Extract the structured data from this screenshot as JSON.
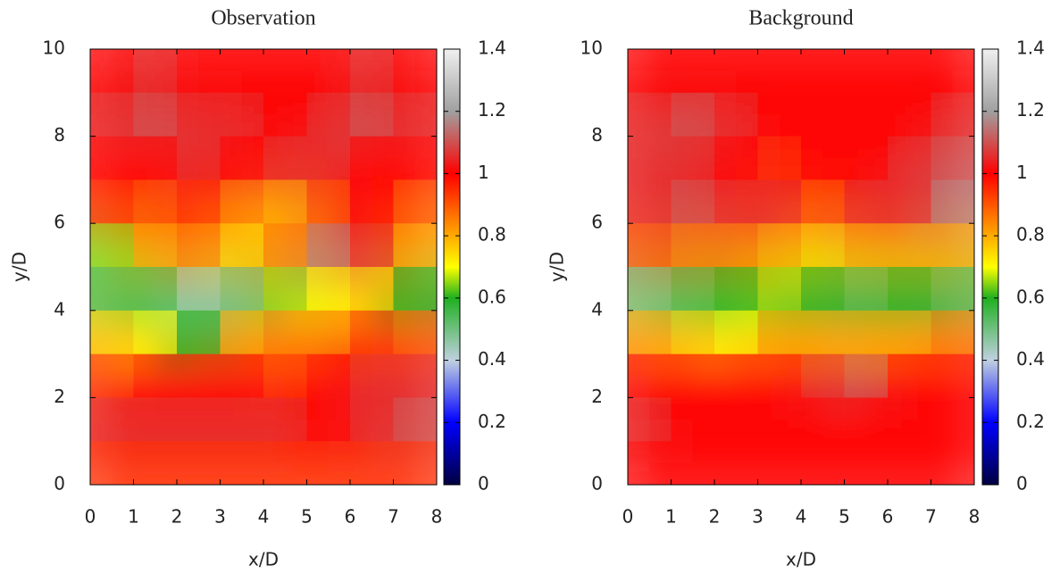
{
  "chart_data": [
    {
      "type": "heatmap",
      "title": "Observation",
      "x_label": "x/D",
      "y_label": "y/D",
      "x": [
        0.5,
        1.5,
        2.5,
        3.5,
        4.5,
        5.5,
        6.5,
        7.5
      ],
      "y": [
        0.5,
        1.5,
        2.5,
        3.5,
        4.5,
        5.5,
        6.5,
        7.5,
        8.5,
        9.5
      ],
      "z": [
        [
          0.95,
          0.95,
          0.95,
          0.95,
          0.95,
          0.95,
          0.95,
          0.95
        ],
        [
          1.05,
          1.05,
          1.05,
          1.05,
          1.05,
          1.0,
          1.05,
          1.1
        ],
        [
          0.95,
          1.0,
          1.0,
          1.0,
          0.95,
          1.0,
          1.05,
          1.05
        ],
        [
          0.75,
          0.7,
          0.6,
          0.8,
          0.85,
          0.85,
          0.95,
          0.9
        ],
        [
          0.55,
          0.55,
          0.45,
          0.5,
          0.65,
          0.7,
          0.75,
          0.6
        ],
        [
          0.65,
          0.8,
          0.85,
          0.75,
          0.85,
          1.15,
          1.05,
          0.8
        ],
        [
          0.95,
          0.9,
          0.95,
          0.85,
          0.8,
          0.9,
          1.0,
          0.9
        ],
        [
          1.0,
          1.0,
          1.05,
          1.0,
          1.05,
          1.05,
          1.0,
          1.0
        ],
        [
          1.05,
          1.1,
          1.05,
          1.05,
          1.0,
          1.05,
          1.1,
          1.05
        ],
        [
          1.0,
          1.05,
          1.0,
          1.0,
          1.0,
          1.0,
          1.05,
          1.0
        ]
      ],
      "xlim": [
        0,
        8
      ],
      "ylim": [
        0,
        10
      ],
      "xticks": [
        0,
        1,
        2,
        3,
        4,
        5,
        6,
        7,
        8
      ],
      "yticks": [
        0,
        2,
        4,
        6,
        8,
        10
      ],
      "clim": [
        0,
        1.4
      ],
      "cticks": [
        0,
        0.2,
        0.4,
        0.6,
        0.8,
        1,
        1.2,
        1.4
      ],
      "colorscale": [
        [
          0,
          "#000040"
        ],
        [
          0.2,
          "#0000ff"
        ],
        [
          0.4,
          "#c0d0e0"
        ],
        [
          0.6,
          "#20b020"
        ],
        [
          0.7,
          "#ffff00"
        ],
        [
          0.85,
          "#ff8000"
        ],
        [
          1.0,
          "#ff0000"
        ],
        [
          1.2,
          "#a0a0a0"
        ],
        [
          1.4,
          "#f0f0f0"
        ]
      ]
    },
    {
      "type": "heatmap",
      "title": "Background",
      "x_label": "x/D",
      "y_label": "y/D",
      "x": [
        0.5,
        1.5,
        2.5,
        3.5,
        4.5,
        5.5,
        6.5,
        7.5
      ],
      "y": [
        0.5,
        1.5,
        2.5,
        3.5,
        4.5,
        5.5,
        6.5,
        7.5,
        8.5,
        9.5
      ],
      "z": [
        [
          1.0,
          1.0,
          1.0,
          1.0,
          1.0,
          1.0,
          1.0,
          1.0
        ],
        [
          1.05,
          1.0,
          1.0,
          1.0,
          1.0,
          1.0,
          1.0,
          1.0
        ],
        [
          1.0,
          1.0,
          1.0,
          1.0,
          1.05,
          1.1,
          1.0,
          1.0
        ],
        [
          0.8,
          0.75,
          0.7,
          0.8,
          0.8,
          0.8,
          0.8,
          0.85
        ],
        [
          0.5,
          0.55,
          0.6,
          0.65,
          0.6,
          0.55,
          0.6,
          0.55
        ],
        [
          0.9,
          0.85,
          0.85,
          0.8,
          0.75,
          0.8,
          0.8,
          0.8
        ],
        [
          1.05,
          1.1,
          1.05,
          1.05,
          0.9,
          1.05,
          1.05,
          1.15
        ],
        [
          1.05,
          1.05,
          1.0,
          0.95,
          1.0,
          1.0,
          1.05,
          1.1
        ],
        [
          1.05,
          1.1,
          1.05,
          1.0,
          1.0,
          1.0,
          1.0,
          1.05
        ],
        [
          1.0,
          1.0,
          1.0,
          1.0,
          1.0,
          1.0,
          1.0,
          1.0
        ]
      ],
      "xlim": [
        0,
        8
      ],
      "ylim": [
        0,
        10
      ],
      "xticks": [
        0,
        1,
        2,
        3,
        4,
        5,
        6,
        7,
        8
      ],
      "yticks": [
        0,
        2,
        4,
        6,
        8,
        10
      ],
      "clim": [
        0,
        1.4
      ],
      "cticks": [
        0,
        0.2,
        0.4,
        0.6,
        0.8,
        1,
        1.2,
        1.4
      ],
      "colorscale": [
        [
          0,
          "#000040"
        ],
        [
          0.2,
          "#0000ff"
        ],
        [
          0.4,
          "#c0d0e0"
        ],
        [
          0.6,
          "#20b020"
        ],
        [
          0.7,
          "#ffff00"
        ],
        [
          0.85,
          "#ff8000"
        ],
        [
          1.0,
          "#ff0000"
        ],
        [
          1.2,
          "#a0a0a0"
        ],
        [
          1.4,
          "#f0f0f0"
        ]
      ]
    }
  ]
}
